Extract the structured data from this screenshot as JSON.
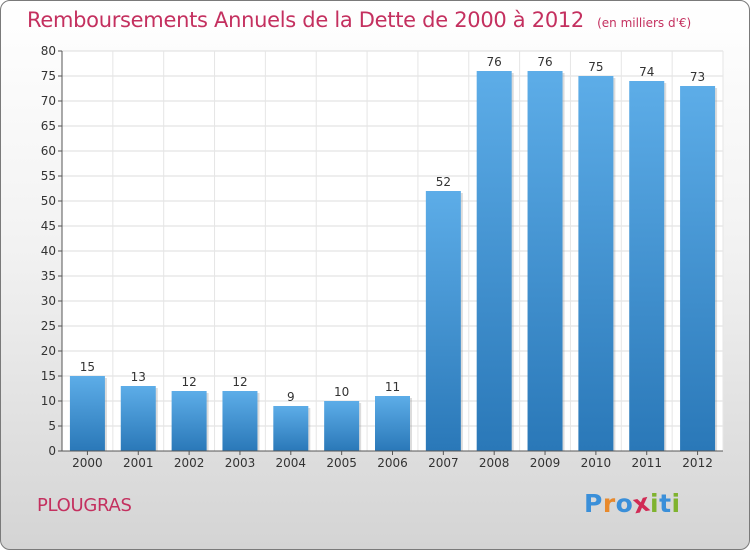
{
  "header": {
    "title": "Remboursements Annuels de la Dette de 2000 à 2012",
    "subtitle": "(en milliers d'€)"
  },
  "footer": {
    "commune": "PLOUGRAS",
    "brand_letters": [
      "P",
      "r",
      "o",
      "x",
      "i",
      "t",
      "i"
    ],
    "brand_colors": [
      "#3a8fd9",
      "#e8892b",
      "#3a8fd9",
      "#d12b55",
      "#7fb32f",
      "#3a8fd9",
      "#7fb32f"
    ]
  },
  "colors": {
    "bar_light": "#5dade8",
    "bar_dark": "#2a78b8",
    "title": "#c4305f"
  },
  "chart_data": {
    "type": "bar",
    "categories": [
      "2000",
      "2001",
      "2002",
      "2003",
      "2004",
      "2005",
      "2006",
      "2007",
      "2008",
      "2009",
      "2010",
      "2011",
      "2012"
    ],
    "values": [
      15,
      13,
      12,
      12,
      9,
      10,
      11,
      52,
      76,
      76,
      75,
      74,
      73
    ],
    "ylim": [
      0,
      80
    ],
    "yticks": [
      "0",
      "5",
      "10",
      "15",
      "20",
      "25",
      "30",
      "35",
      "40",
      "45",
      "50",
      "55",
      "60",
      "65",
      "70",
      "75",
      "80"
    ],
    "grid": true,
    "legend": "none"
  }
}
